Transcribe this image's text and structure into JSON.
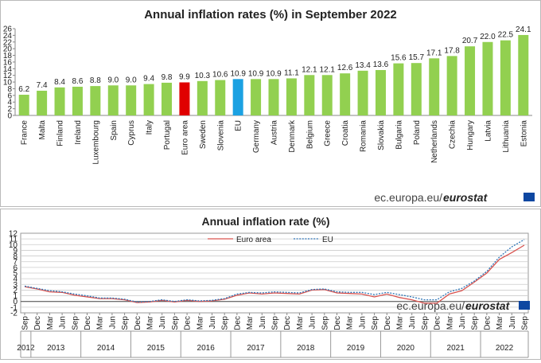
{
  "chart_data": [
    {
      "type": "bar",
      "title": "Annual inflation rates (%) in September 2022",
      "categories": [
        "France",
        "Malta",
        "Finland",
        "Ireland",
        "Luxembourg",
        "Spain",
        "Cyprus",
        "Italy",
        "Portugal",
        "Euro area",
        "Sweden",
        "Slovenia",
        "EU",
        "Germany",
        "Austria",
        "Denmark",
        "Belgium",
        "Greece",
        "Croatia",
        "Romania",
        "Slovakia",
        "Bulgaria",
        "Poland",
        "Netherlands",
        "Czechia",
        "Hungary",
        "Latvia",
        "Lithuania",
        "Estonia"
      ],
      "values": [
        6.2,
        7.4,
        8.4,
        8.6,
        8.8,
        9.0,
        9.0,
        9.4,
        9.8,
        9.9,
        10.3,
        10.6,
        10.9,
        10.9,
        10.9,
        11.1,
        12.1,
        12.1,
        12.6,
        13.4,
        13.6,
        15.6,
        15.7,
        17.1,
        17.8,
        20.7,
        22.0,
        22.5,
        24.1
      ],
      "value_labels": [
        "6.2",
        "7.4",
        "8.4",
        "8.6",
        "8.8",
        "9.0",
        "9.0",
        "9.4",
        "9.8",
        "9.9",
        "10.3",
        "10.6",
        "10.9",
        "10.9",
        "10.9",
        "11.1",
        "12.1",
        "12.1",
        "12.6",
        "13.4",
        "13.6",
        "15.6",
        "15.7",
        "17.1",
        "17.8",
        "20.7",
        "22.0",
        "22.5",
        "24.1"
      ],
      "yticks": [
        "0",
        "2",
        "4",
        "6",
        "8",
        "10",
        "12",
        "14",
        "16",
        "18",
        "20",
        "22",
        "24",
        "26"
      ],
      "ylim": [
        0,
        26
      ],
      "colors": {
        "default": "#92d050",
        "Euro area": "#e00000",
        "EU": "#1ba1e2"
      },
      "source": {
        "text": "ec.europa.eu/",
        "brand": "eurostat"
      }
    },
    {
      "type": "line",
      "title": "Annual inflation rate (%)",
      "months": [
        "Sep",
        "Dec",
        "Mar",
        "Jun",
        "Sep",
        "Dec",
        "Mar",
        "Jun",
        "Sep",
        "Dec",
        "Mar",
        "Jun",
        "Sep",
        "Dec",
        "Mar",
        "Jun",
        "Sep",
        "Dec",
        "Mar",
        "Jun",
        "Sep",
        "Dec",
        "Mar",
        "Jun",
        "Sep",
        "Dec",
        "Mar",
        "Jun",
        "Sep",
        "Dec",
        "Mar",
        "Jun",
        "Sep",
        "Dec",
        "Mar",
        "Jun",
        "Sep",
        "Dec",
        "Mar",
        "Jun",
        "Sep"
      ],
      "years": [
        "2012",
        "2013",
        "2014",
        "2015",
        "2016",
        "2017",
        "2018",
        "2019",
        "2020",
        "2021",
        "2022"
      ],
      "yticks": [
        "-2",
        "-1",
        "0",
        "1",
        "2",
        "3",
        "4",
        "5",
        "6",
        "7",
        "8",
        "9",
        "10",
        "11",
        "12"
      ],
      "ylim": [
        -2,
        12
      ],
      "series": [
        {
          "name": "Euro area",
          "color": "#d9534f",
          "dash": "solid",
          "values": [
            2.6,
            2.2,
            1.7,
            1.6,
            1.1,
            0.8,
            0.5,
            0.5,
            0.3,
            -0.2,
            -0.1,
            0.2,
            -0.1,
            0.2,
            0.0,
            0.1,
            0.4,
            1.1,
            1.5,
            1.3,
            1.5,
            1.4,
            1.3,
            2.0,
            2.1,
            1.5,
            1.4,
            1.3,
            0.8,
            1.3,
            0.7,
            0.3,
            -0.3,
            -0.3,
            1.3,
            1.9,
            3.4,
            5.0,
            7.4,
            8.6,
            9.9
          ]
        },
        {
          "name": "EU",
          "color": "#2e75b6",
          "dash": "dotted",
          "values": [
            2.7,
            2.3,
            1.9,
            1.7,
            1.3,
            1.0,
            0.6,
            0.6,
            0.4,
            -0.1,
            0.0,
            0.3,
            0.0,
            0.3,
            0.1,
            0.2,
            0.5,
            1.3,
            1.6,
            1.5,
            1.7,
            1.6,
            1.5,
            2.1,
            2.2,
            1.7,
            1.6,
            1.6,
            1.2,
            1.6,
            1.2,
            0.8,
            0.3,
            0.3,
            1.7,
            2.3,
            3.6,
            5.3,
            7.8,
            9.6,
            10.9
          ]
        }
      ],
      "source": {
        "text": "ec.europa.eu/",
        "brand": "eurostat"
      }
    }
  ]
}
